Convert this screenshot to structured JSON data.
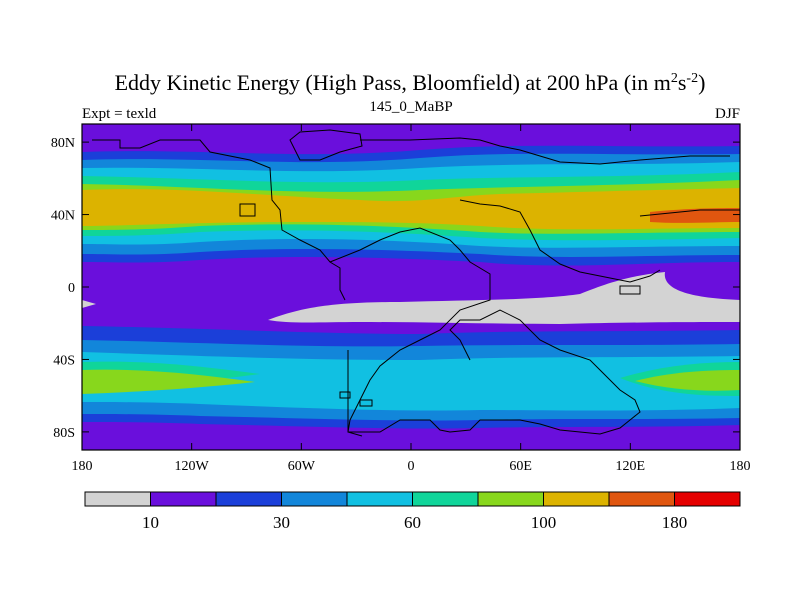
{
  "chart_data": {
    "type": "heatmap",
    "title_main": "Eddy Kinetic Energy (High Pass, Bloomfield) at 200 hPa (in m",
    "title_sup1": "2",
    "title_mid": "s",
    "title_sup2": "-2",
    "title_end": ")",
    "subtitle_left": "Expt = texld",
    "subtitle_center": "145_0_MaBP",
    "subtitle_right": "DJF",
    "y_ticks": [
      {
        "value": 80,
        "label": "80N"
      },
      {
        "value": 40,
        "label": "40N"
      },
      {
        "value": 0,
        "label": "0"
      },
      {
        "value": -40,
        "label": "40S"
      },
      {
        "value": -80,
        "label": "80S"
      }
    ],
    "x_ticks": [
      {
        "value": -180,
        "label": "180"
      },
      {
        "value": -120,
        "label": "120W"
      },
      {
        "value": -60,
        "label": "60W"
      },
      {
        "value": 0,
        "label": "0"
      },
      {
        "value": 60,
        "label": "60E"
      },
      {
        "value": 120,
        "label": "120E"
      },
      {
        "value": 180,
        "label": "180"
      }
    ],
    "xlim": [
      -180,
      180
    ],
    "ylim": [
      -90,
      90
    ],
    "colorbar": {
      "colors": [
        "#d3d3d3",
        "#6a0fdc",
        "#1b3fd9",
        "#1286da",
        "#11c0e2",
        "#10d59a",
        "#88d71c",
        "#dcb300",
        "#e0560f",
        "#e50000"
      ],
      "labels": [
        {
          "boundary": 1,
          "label": "10"
        },
        {
          "boundary": 3,
          "label": "30"
        },
        {
          "boundary": 5,
          "label": "60"
        },
        {
          "boundary": 7,
          "label": "100"
        },
        {
          "boundary": 9,
          "label": "180"
        }
      ]
    }
  }
}
